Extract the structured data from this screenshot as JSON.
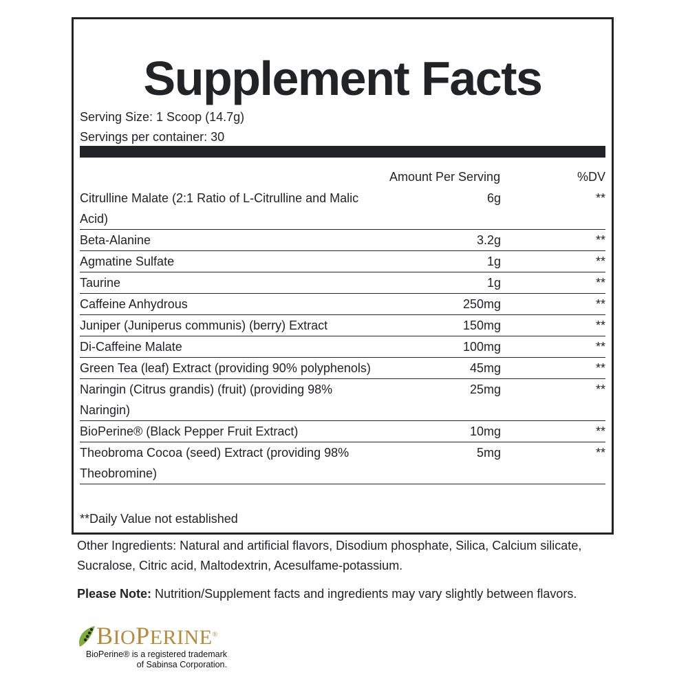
{
  "title": "Supplement Facts",
  "serving_size": "Serving Size: 1 Scoop (14.7g)",
  "servings_per_container": "Servings per container: 30",
  "header": {
    "amount": "Amount Per Serving",
    "dv": "%DV"
  },
  "rows": [
    {
      "name": "Citrulline Malate (2:1 Ratio of L-Citrulline and Malic Acid)",
      "amount": "6g",
      "dv": "**"
    },
    {
      "name": "Beta-Alanine",
      "amount": "3.2g",
      "dv": "**"
    },
    {
      "name": "Agmatine Sulfate",
      "amount": "1g",
      "dv": "**"
    },
    {
      "name": "Taurine",
      "amount": "1g",
      "dv": "**"
    },
    {
      "name": "Caffeine Anhydrous",
      "amount": "250mg",
      "dv": "**"
    },
    {
      "name": "Juniper (Juniperus communis) (berry) Extract",
      "amount": "150mg",
      "dv": "**"
    },
    {
      "name": "Di-Caffeine Malate",
      "amount": "100mg",
      "dv": "**"
    },
    {
      "name": "Green Tea (leaf) Extract (providing 90% polyphenols)",
      "amount": "45mg",
      "dv": "**"
    },
    {
      "name": "Naringin (Citrus grandis) (fruit) (providing 98% Naringin)",
      "amount": "25mg",
      "dv": "**"
    },
    {
      "name": "BioPerine® (Black Pepper Fruit Extract)",
      "amount": "10mg",
      "dv": "**"
    },
    {
      "name": "Theobroma Cocoa (seed) Extract (providing 98% Theobromine)",
      "amount": "5mg",
      "dv": "**"
    }
  ],
  "footnote": "**Daily Value not established",
  "other_ingredients": "Other Ingredients: Natural and artificial flavors, Disodium phosphate, Silica, Calcium silicate, Sucralose, Citric acid, Maltodextrin, Acesulfame-potassium.",
  "note": {
    "label": "Please Note:",
    "text": " Nutrition/Supplement facts and ingredients may vary slightly between flavors."
  },
  "logo": {
    "wordmark": "BIOPERINE®",
    "trademark": "BioPerine® is a registered trademark of Sabinsa Corporation.",
    "color": "#b48a3c"
  }
}
